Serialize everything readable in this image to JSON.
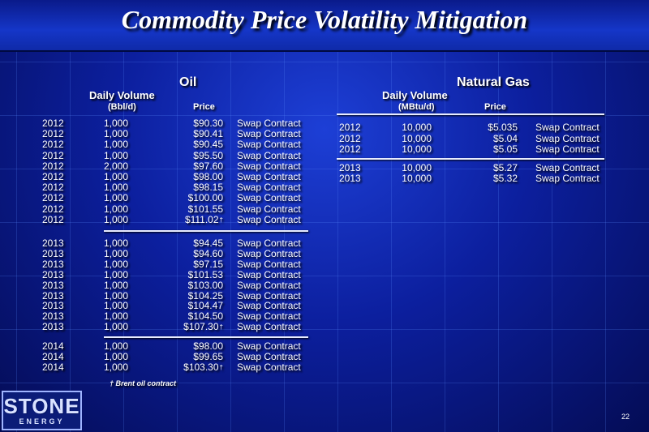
{
  "title": "Commodity Price Volatility Mitigation",
  "oil": {
    "heading": "Oil",
    "volume_label": "Daily Volume",
    "unit_label": "(Bbl/d)",
    "price_label": "Price",
    "groups": [
      [
        {
          "year": "2012",
          "volume": "1,000",
          "price": "$90.30",
          "contract": "Swap Contract"
        },
        {
          "year": "2012",
          "volume": "1,000",
          "price": "$90.41",
          "contract": "Swap Contract"
        },
        {
          "year": "2012",
          "volume": "1,000",
          "price": "$90.45",
          "contract": "Swap Contract"
        },
        {
          "year": "2012",
          "volume": "1,000",
          "price": "$95.50",
          "contract": "Swap Contract"
        },
        {
          "year": "2012",
          "volume": "2,000",
          "price": "$97.60",
          "contract": "Swap Contract"
        },
        {
          "year": "2012",
          "volume": "1,000",
          "price": "$98.00",
          "contract": "Swap Contract"
        },
        {
          "year": "2012",
          "volume": "1,000",
          "price": "$98.15",
          "contract": "Swap Contract"
        },
        {
          "year": "2012",
          "volume": "1,000",
          "price": "$100.00",
          "contract": "Swap Contract"
        },
        {
          "year": "2012",
          "volume": "1,000",
          "price": "$101.55",
          "contract": "Swap Contract"
        },
        {
          "year": "2012",
          "volume": "1,000",
          "price": "$111.02",
          "contract": "Swap Contract",
          "mark": "†"
        }
      ],
      [
        {
          "year": "2013",
          "volume": "1,000",
          "price": "$94.45",
          "contract": "Swap Contract"
        },
        {
          "year": "2013",
          "volume": "1,000",
          "price": "$94.60",
          "contract": "Swap Contract"
        },
        {
          "year": "2013",
          "volume": "1,000",
          "price": "$97.15",
          "contract": "Swap Contract"
        },
        {
          "year": "2013",
          "volume": "1,000",
          "price": "$101.53",
          "contract": "Swap Contract"
        },
        {
          "year": "2013",
          "volume": "1,000",
          "price": "$103.00",
          "contract": "Swap Contract"
        },
        {
          "year": "2013",
          "volume": "1,000",
          "price": "$104.25",
          "contract": "Swap Contract"
        },
        {
          "year": "2013",
          "volume": "1,000",
          "price": "$104.47",
          "contract": "Swap Contract"
        },
        {
          "year": "2013",
          "volume": "1,000",
          "price": "$104.50",
          "contract": "Swap Contract"
        },
        {
          "year": "2013",
          "volume": "1,000",
          "price": "$107.30",
          "contract": "Swap Contract",
          "mark": "†"
        }
      ],
      [
        {
          "year": "2014",
          "volume": "1,000",
          "price": "$98.00",
          "contract": "Swap Contract"
        },
        {
          "year": "2014",
          "volume": "1,000",
          "price": "$99.65",
          "contract": "Swap Contract"
        },
        {
          "year": "2014",
          "volume": "1,000",
          "price": "$103.30",
          "contract": "Swap Contract",
          "mark": "†"
        }
      ]
    ],
    "footnote_mark": "†",
    "footnote": "Brent oil contract"
  },
  "gas": {
    "heading": "Natural Gas",
    "volume_label": "Daily Volume",
    "unit_label": "(MBtu/d)",
    "price_label": "Price",
    "groups": [
      [
        {
          "year": "2012",
          "volume": "10,000",
          "price": "$5.035",
          "contract": "Swap Contract"
        },
        {
          "year": "2012",
          "volume": "10,000",
          "price": "$5.04",
          "contract": "Swap Contract"
        },
        {
          "year": "2012",
          "volume": "10,000",
          "price": "$5.05",
          "contract": "Swap Contract"
        }
      ],
      [
        {
          "year": "2013",
          "volume": "10,000",
          "price": "$5.27",
          "contract": "Swap Contract"
        },
        {
          "year": "2013",
          "volume": "10,000",
          "price": "$5.32",
          "contract": "Swap Contract"
        }
      ]
    ]
  },
  "logo": {
    "main": "STONE",
    "sub": "ENERGY"
  },
  "page_number": "22"
}
